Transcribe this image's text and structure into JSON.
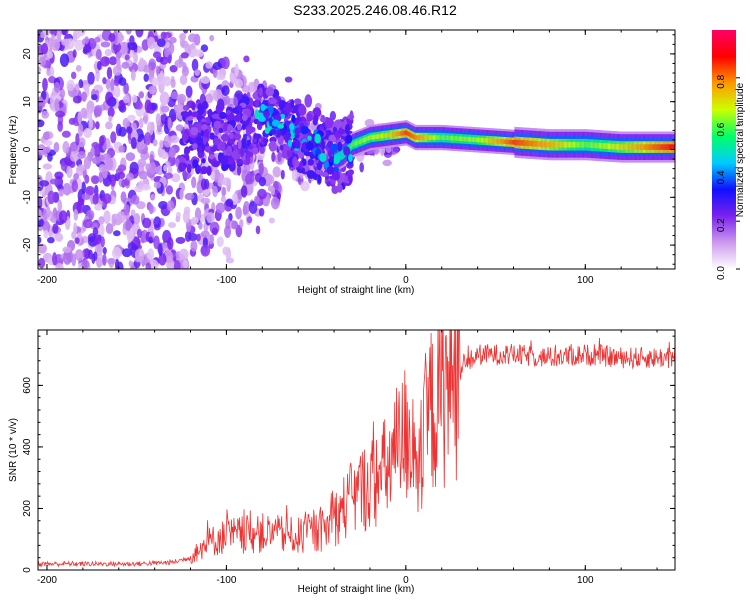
{
  "title": "S233.2025.246.08.46.R12",
  "chart_data": [
    {
      "type": "heatmap",
      "title": "S233.2025.246.08.46.R12",
      "xlabel": "Height of straight line (km)",
      "ylabel": "Frequency (Hz)",
      "xlim": [
        -205,
        150
      ],
      "ylim": [
        -25,
        25
      ],
      "xticks": [
        -200,
        -100,
        0,
        100
      ],
      "yticks": [
        -20,
        -10,
        0,
        10,
        20
      ],
      "colorbar": {
        "label": "Normalized spectral amplitude",
        "range": [
          0,
          1
        ],
        "ticks": [
          0.0,
          0.2,
          0.4,
          0.6,
          0.8
        ],
        "colors": [
          "#ffffff",
          "#cc99ee",
          "#7a22ee",
          "#1010ff",
          "#00ccff",
          "#00ff66",
          "#ccff00",
          "#ff9900",
          "#ff0000",
          "#ff0066"
        ]
      },
      "signal_track": {
        "x": [
          -120,
          -100,
          -80,
          -70,
          -60,
          -50,
          -40,
          -35,
          -30,
          -20,
          -10,
          0,
          5,
          20,
          40,
          60,
          80,
          100,
          120,
          150
        ],
        "freq": [
          3,
          2,
          6,
          5,
          3,
          1,
          -2,
          -1,
          1,
          2.5,
          3,
          3.5,
          2.5,
          2.5,
          2,
          1.5,
          1,
          1,
          0.5,
          0.5
        ],
        "amplitude": [
          0.2,
          0.25,
          0.4,
          0.45,
          0.4,
          0.35,
          0.4,
          0.5,
          0.6,
          0.65,
          0.7,
          0.85,
          0.8,
          0.6,
          0.65,
          0.85,
          0.75,
          0.6,
          0.7,
          0.9
        ]
      }
    },
    {
      "type": "line",
      "xlabel": "Height of straight line (km)",
      "ylabel": "SNR (10 * v/v)",
      "xlim": [
        -205,
        150
      ],
      "ylim": [
        0,
        780
      ],
      "xticks": [
        -200,
        -100,
        0,
        100
      ],
      "yticks": [
        0,
        200,
        400,
        600
      ],
      "color": "#ee3333",
      "series": [
        {
          "name": "SNR",
          "x": [
            -205,
            -180,
            -150,
            -130,
            -120,
            -110,
            -100,
            -80,
            -60,
            -45,
            -35,
            -25,
            -15,
            -5,
            0,
            5,
            8,
            12,
            20,
            30,
            40,
            60,
            80,
            100,
            120,
            150
          ],
          "y": [
            20,
            20,
            20,
            25,
            40,
            90,
            110,
            120,
            110,
            130,
            200,
            260,
            300,
            370,
            450,
            430,
            280,
            500,
            570,
            650,
            700,
            700,
            690,
            700,
            690,
            690
          ]
        }
      ]
    }
  ]
}
